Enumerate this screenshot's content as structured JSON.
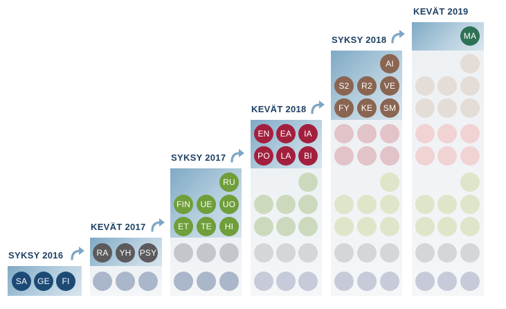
{
  "terms": [
    {
      "label": "SYKSY 2016",
      "courses": [
        "SA",
        "GE",
        "FI"
      ]
    },
    {
      "label": "KEVÄT 2017",
      "courses": [
        "RA",
        "YH",
        "PSY"
      ]
    },
    {
      "label": "SYKSY 2017",
      "courses": [
        "RU",
        "FIN",
        "UE",
        "UO",
        "ET",
        "TE",
        "HI"
      ]
    },
    {
      "label": "KEVÄT 2018",
      "courses": [
        "EN",
        "EA",
        "IA",
        "PO",
        "LA",
        "BI"
      ]
    },
    {
      "label": "SYKSY 2018",
      "courses": [
        "AI",
        "S2",
        "R2",
        "VE",
        "FY",
        "KE",
        "SM"
      ]
    },
    {
      "label": "KEVÄT 2019",
      "courses": [
        "MA"
      ]
    }
  ],
  "colors": {
    "label_text": "#1d3f62",
    "arrow": "#7ea6c4",
    "navy": "#1c4a75",
    "gray": "#5c5a5c",
    "green": "#6f9e3a",
    "red": "#a2203e",
    "brown": "#8a6551",
    "teal": "#2e7255"
  },
  "icons": {
    "transition_arrow": "curved-up-right-arrow-icon"
  }
}
